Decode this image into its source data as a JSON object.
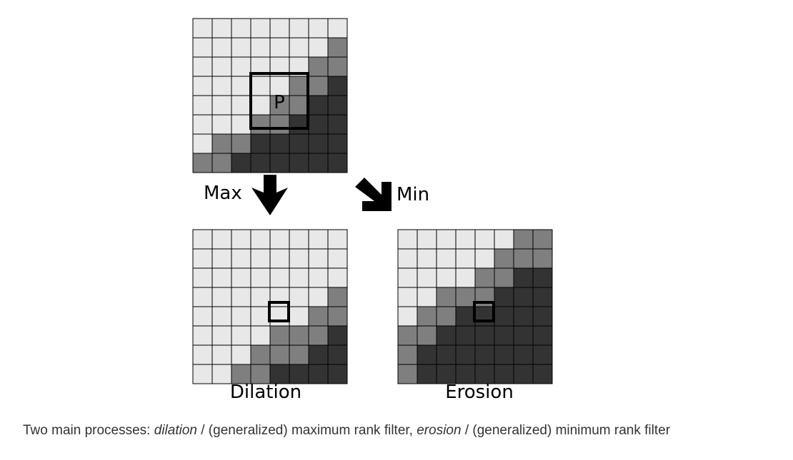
{
  "colors": {
    "levels": [
      "#e8e8e8",
      "#7f7f7f",
      "#333333"
    ],
    "grid_line": "#000000",
    "window": "#000000",
    "caption_text": "#333333"
  },
  "grids": {
    "input": {
      "cells": [
        [
          0,
          0,
          0,
          0,
          0,
          0,
          0,
          0
        ],
        [
          0,
          0,
          0,
          0,
          0,
          0,
          0,
          1
        ],
        [
          0,
          0,
          0,
          0,
          0,
          0,
          1,
          1
        ],
        [
          0,
          0,
          0,
          0,
          0,
          1,
          1,
          2
        ],
        [
          0,
          0,
          0,
          0,
          1,
          1,
          2,
          2
        ],
        [
          0,
          0,
          0,
          1,
          1,
          2,
          2,
          2
        ],
        [
          0,
          1,
          1,
          2,
          2,
          2,
          2,
          2
        ],
        [
          1,
          1,
          2,
          2,
          2,
          2,
          2,
          2
        ]
      ],
      "pixel_label": "P"
    },
    "dilation": {
      "cells": [
        [
          0,
          0,
          0,
          0,
          0,
          0,
          0,
          0
        ],
        [
          0,
          0,
          0,
          0,
          0,
          0,
          0,
          0
        ],
        [
          0,
          0,
          0,
          0,
          0,
          0,
          0,
          0
        ],
        [
          0,
          0,
          0,
          0,
          0,
          0,
          0,
          1
        ],
        [
          0,
          0,
          0,
          0,
          0,
          0,
          1,
          1
        ],
        [
          0,
          0,
          0,
          0,
          1,
          1,
          1,
          2
        ],
        [
          0,
          0,
          0,
          1,
          1,
          1,
          2,
          2
        ],
        [
          0,
          0,
          1,
          1,
          2,
          2,
          2,
          2
        ]
      ],
      "label": "Dilation"
    },
    "erosion": {
      "cells": [
        [
          0,
          0,
          0,
          0,
          0,
          0,
          1,
          1
        ],
        [
          0,
          0,
          0,
          0,
          0,
          1,
          1,
          1
        ],
        [
          0,
          0,
          0,
          0,
          1,
          1,
          2,
          2
        ],
        [
          0,
          0,
          1,
          1,
          1,
          2,
          2,
          2
        ],
        [
          0,
          1,
          1,
          2,
          2,
          2,
          2,
          2
        ],
        [
          1,
          1,
          2,
          2,
          2,
          2,
          2,
          2
        ],
        [
          1,
          2,
          2,
          2,
          2,
          2,
          2,
          2
        ],
        [
          1,
          2,
          2,
          2,
          2,
          2,
          2,
          2
        ]
      ],
      "label": "Erosion"
    }
  },
  "arrows": {
    "max_label": "Max",
    "min_label": "Min"
  },
  "caption": {
    "dilation_term": "dilation",
    "middle": " / (generalized) maximum rank filter, ",
    "erosion_term": "erosion",
    "end": " / (generalized) minimum rank filter",
    "start": "Two main processes: "
  }
}
